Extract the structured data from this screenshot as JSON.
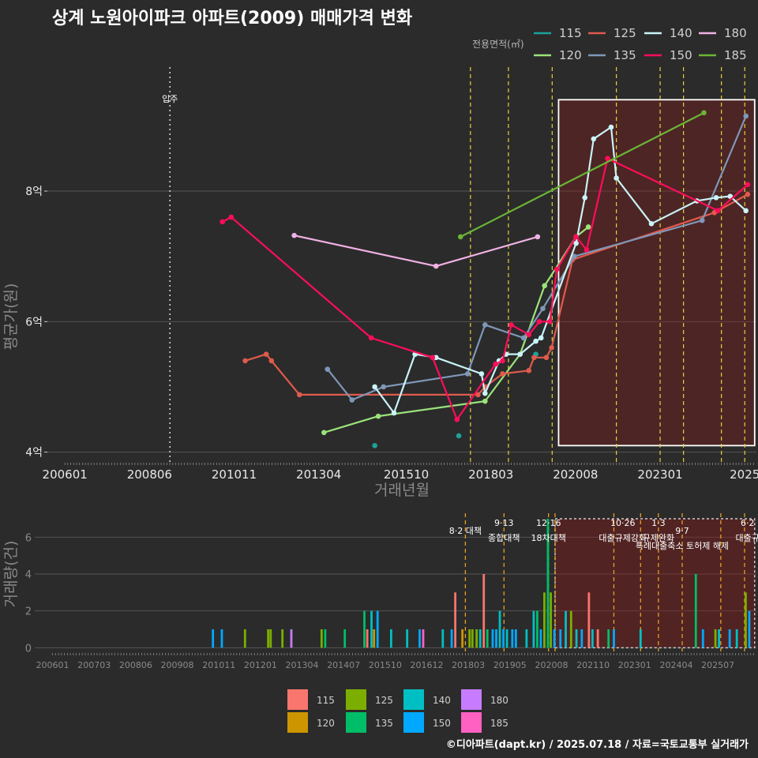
{
  "chart_data": [
    {
      "id": "price",
      "type": "line",
      "title": "상계 노원아이파크 아파트(2009) 매매가격 변화",
      "xlabel": "거래년월",
      "ylabel": "평균가(원)",
      "legend_title": "전용면적(㎡)",
      "y_tick_labels": [
        {
          "v": 4,
          "label": "4억"
        },
        {
          "v": 6,
          "label": "6억"
        },
        {
          "v": 8,
          "label": "8억"
        }
      ],
      "x_tick_labels": [
        {
          "t": 2006.0,
          "label": "200601"
        },
        {
          "t": 2008.417,
          "label": "200806"
        },
        {
          "t": 2010.833,
          "label": "201011"
        },
        {
          "t": 2013.25,
          "label": "201304"
        },
        {
          "t": 2015.75,
          "label": "201510"
        },
        {
          "t": 2018.167,
          "label": "201803"
        },
        {
          "t": 2020.583,
          "label": "202008"
        },
        {
          "t": 2023.0,
          "label": "202301"
        },
        {
          "t": 2025.417,
          "label": "2025"
        }
      ],
      "ylim": [
        3.85,
        9.9
      ],
      "xlim": [
        2005.5,
        2025.75
      ],
      "move_in": {
        "t": 2009.0,
        "label": "입주"
      },
      "policy_lines": [
        2017.583,
        2018.667,
        2019.917,
        2021.75,
        2023.0,
        2023.667,
        2024.75,
        2025.417
      ],
      "highlight_range": {
        "t0": 2020.1,
        "t1": 2025.7,
        "v0": 4.1,
        "v1": 9.4
      },
      "series": [
        {
          "name": "115",
          "color": "#1aa39a",
          "points": [
            [
              2014.85,
              4.1
            ],
            [
              2017.25,
              4.25
            ],
            [
              2019.45,
              5.5
            ]
          ],
          "connect": false
        },
        {
          "name": "120",
          "color": "#9be37a",
          "points": [
            [
              2013.4,
              4.3
            ],
            [
              2014.95,
              4.55
            ],
            [
              2018.0,
              4.78
            ],
            [
              2019.0,
              5.5
            ],
            [
              2019.7,
              6.55
            ],
            [
              2020.6,
              7.3
            ],
            [
              2020.95,
              7.45
            ]
          ],
          "connect": true
        },
        {
          "name": "125",
          "color": "#e05a4c",
          "points": [
            [
              2011.15,
              5.4
            ],
            [
              2011.75,
              5.5
            ],
            [
              2011.9,
              5.4
            ],
            [
              2012.7,
              4.88
            ],
            [
              2017.8,
              4.88
            ],
            [
              2018.0,
              5.0
            ],
            [
              2018.5,
              5.2
            ],
            [
              2019.25,
              5.25
            ],
            [
              2019.4,
              5.45
            ],
            [
              2019.75,
              5.45
            ],
            [
              2019.9,
              5.6
            ],
            [
              2020.5,
              6.95
            ],
            [
              2024.55,
              7.67
            ],
            [
              2025.5,
              7.95
            ]
          ],
          "connect": true
        },
        {
          "name": "135",
          "color": "#7f97b8",
          "points": [
            [
              2013.5,
              5.27
            ],
            [
              2014.2,
              4.8
            ],
            [
              2015.1,
              5.0
            ],
            [
              2017.5,
              5.2
            ],
            [
              2018.0,
              5.95
            ],
            [
              2019.1,
              5.75
            ],
            [
              2019.65,
              6.2
            ],
            [
              2020.55,
              7.0
            ],
            [
              2024.2,
              7.55
            ],
            [
              2025.45,
              9.15
            ]
          ],
          "connect": true
        },
        {
          "name": "140",
          "color": "#c9f4f8",
          "points": [
            [
              2014.85,
              5.0
            ],
            [
              2015.4,
              4.6
            ],
            [
              2016.0,
              5.5
            ],
            [
              2016.6,
              5.45
            ],
            [
              2017.9,
              5.2
            ],
            [
              2018.0,
              4.9
            ],
            [
              2018.4,
              5.4
            ],
            [
              2018.6,
              5.5
            ],
            [
              2019.0,
              5.5
            ],
            [
              2019.45,
              5.7
            ],
            [
              2019.6,
              5.75
            ],
            [
              2020.6,
              7.2
            ],
            [
              2020.85,
              7.9
            ],
            [
              2021.1,
              8.8
            ],
            [
              2021.6,
              8.98
            ],
            [
              2021.75,
              8.2
            ],
            [
              2022.75,
              7.5
            ],
            [
              2024.05,
              7.85
            ],
            [
              2024.6,
              7.9
            ],
            [
              2025.0,
              7.92
            ],
            [
              2025.45,
              7.7
            ]
          ],
          "connect": true
        },
        {
          "name": "150",
          "color": "#ff0d5a",
          "points": [
            [
              2010.5,
              7.53
            ],
            [
              2010.75,
              7.6
            ],
            [
              2014.75,
              5.75
            ],
            [
              2016.5,
              5.45
            ],
            [
              2017.2,
              4.5
            ],
            [
              2018.3,
              5.35
            ],
            [
              2018.5,
              5.4
            ],
            [
              2018.75,
              5.95
            ],
            [
              2019.25,
              5.8
            ],
            [
              2019.55,
              6.0
            ],
            [
              2019.85,
              6.0
            ],
            [
              2020.05,
              6.8
            ],
            [
              2020.6,
              7.3
            ],
            [
              2020.9,
              7.1
            ],
            [
              2021.5,
              8.5
            ],
            [
              2024.65,
              7.7
            ],
            [
              2025.5,
              8.1
            ]
          ],
          "connect": true
        },
        {
          "name": "180",
          "color": "#f0b1e4",
          "points": [
            [
              2012.55,
              7.32
            ],
            [
              2016.6,
              6.85
            ],
            [
              2019.5,
              7.3
            ]
          ],
          "connect": true
        },
        {
          "name": "185",
          "color": "#6ab536",
          "points": [
            [
              2017.3,
              7.3
            ],
            [
              2024.25,
              9.2
            ]
          ],
          "connect": true
        }
      ]
    },
    {
      "id": "volume",
      "type": "bar",
      "ylabel": "거래량(건)",
      "ylim": [
        -0.2,
        7.3
      ],
      "y_ticks": [
        0,
        2,
        4,
        6
      ],
      "x_tick_labels": [
        "200601",
        "200703",
        "200806",
        "200908",
        "201011",
        "201201",
        "201304",
        "201407",
        "201510",
        "201612",
        "201803",
        "201905",
        "202008",
        "202110",
        "202301",
        "202404",
        "202507"
      ],
      "x_start": 2006.0,
      "x_step": 1.1667,
      "xlim": [
        2005.5,
        2025.75
      ],
      "highlight_range": {
        "t0": 2020.1,
        "t1": 2025.7,
        "v1": 7.0
      },
      "policy_lines": [
        2017.583,
        2018.667,
        2019.917,
        2020.1,
        2021.75,
        2022.5,
        2023.0,
        2023.667,
        2024.75,
        2025.417
      ],
      "annotations": [
        {
          "t": 2017.583,
          "lines": [
            "8·2 대책"
          ],
          "row": 2
        },
        {
          "t": 2018.667,
          "lines": [
            "9·13",
            "종합대책"
          ],
          "row": 1
        },
        {
          "t": 2019.917,
          "lines": [
            "12·16",
            "18차대책"
          ],
          "row": 1
        },
        {
          "t": 2022.0,
          "lines": [
            "10·26",
            "대출규제강화"
          ],
          "row": 1
        },
        {
          "t": 2023.0,
          "lines": [
            "1·3",
            "규제완화"
          ],
          "row": 1
        },
        {
          "t": 2023.667,
          "lines": [
            "9·7",
            "특례대출축소 토허제 해제"
          ],
          "row": 2
        },
        {
          "t": 2025.5,
          "lines": [
            "6·2",
            "대출규"
          ],
          "row": 1
        }
      ],
      "legend_entries": [
        {
          "name": "115",
          "color": "#f8766d"
        },
        {
          "name": "125",
          "color": "#7cae00"
        },
        {
          "name": "140",
          "color": "#00bfc4"
        },
        {
          "name": "180",
          "color": "#c77cff"
        },
        {
          "name": "120",
          "color": "#cd9600"
        },
        {
          "name": "135",
          "color": "#00be67"
        },
        {
          "name": "150",
          "color": "#00a9ff"
        },
        {
          "name": "185",
          "color": "#ff61c3"
        }
      ],
      "bars": [
        {
          "t": 2010.5,
          "v": 1,
          "s": "150"
        },
        {
          "t": 2010.75,
          "v": 1,
          "s": "150"
        },
        {
          "t": 2011.4,
          "v": 1,
          "s": "125"
        },
        {
          "t": 2012.05,
          "v": 1,
          "s": "125"
        },
        {
          "t": 2012.12,
          "v": 1,
          "s": "125"
        },
        {
          "t": 2012.45,
          "v": 1,
          "s": "125"
        },
        {
          "t": 2012.7,
          "v": 1,
          "s": "180"
        },
        {
          "t": 2013.55,
          "v": 1,
          "s": "125"
        },
        {
          "t": 2013.65,
          "v": 1,
          "s": "135"
        },
        {
          "t": 2014.2,
          "v": 1,
          "s": "135"
        },
        {
          "t": 2014.75,
          "v": 2,
          "s": "135"
        },
        {
          "t": 2014.83,
          "v": 1,
          "s": "115"
        },
        {
          "t": 2014.95,
          "v": 2,
          "s": "140"
        },
        {
          "t": 2015.02,
          "v": 1,
          "s": "120"
        },
        {
          "t": 2015.12,
          "v": 2,
          "s": "150"
        },
        {
          "t": 2015.5,
          "v": 1,
          "s": "140"
        },
        {
          "t": 2015.95,
          "v": 1,
          "s": "140"
        },
        {
          "t": 2016.3,
          "v": 1,
          "s": "150"
        },
        {
          "t": 2016.4,
          "v": 1,
          "s": "185"
        },
        {
          "t": 2016.95,
          "v": 1,
          "s": "140"
        },
        {
          "t": 2017.2,
          "v": 1,
          "s": "150"
        },
        {
          "t": 2017.3,
          "v": 3,
          "s": "115"
        },
        {
          "t": 2017.5,
          "v": 1,
          "s": "120"
        },
        {
          "t": 2017.7,
          "v": 1,
          "s": "125"
        },
        {
          "t": 2017.78,
          "v": 1,
          "s": "125"
        },
        {
          "t": 2017.9,
          "v": 1,
          "s": "125"
        },
        {
          "t": 2018.0,
          "v": 1,
          "s": "140"
        },
        {
          "t": 2018.1,
          "v": 4,
          "s": "115"
        },
        {
          "t": 2018.2,
          "v": 1,
          "s": "135"
        },
        {
          "t": 2018.35,
          "v": 1,
          "s": "150"
        },
        {
          "t": 2018.45,
          "v": 1,
          "s": "150"
        },
        {
          "t": 2018.55,
          "v": 2,
          "s": "140"
        },
        {
          "t": 2018.65,
          "v": 1,
          "s": "150"
        },
        {
          "t": 2018.75,
          "v": 1,
          "s": "140"
        },
        {
          "t": 2018.9,
          "v": 1,
          "s": "150"
        },
        {
          "t": 2019.0,
          "v": 1,
          "s": "150"
        },
        {
          "t": 2019.3,
          "v": 1,
          "s": "140"
        },
        {
          "t": 2019.5,
          "v": 2,
          "s": "140"
        },
        {
          "t": 2019.6,
          "v": 2,
          "s": "135"
        },
        {
          "t": 2019.7,
          "v": 1,
          "s": "150"
        },
        {
          "t": 2019.8,
          "v": 3,
          "s": "125"
        },
        {
          "t": 2019.9,
          "v": 7,
          "s": "135"
        },
        {
          "t": 2019.98,
          "v": 3,
          "s": "125"
        },
        {
          "t": 2020.08,
          "v": 1,
          "s": "150"
        },
        {
          "t": 2020.25,
          "v": 1,
          "s": "150"
        },
        {
          "t": 2020.4,
          "v": 2,
          "s": "140"
        },
        {
          "t": 2020.55,
          "v": 2,
          "s": "125"
        },
        {
          "t": 2020.7,
          "v": 1,
          "s": "140"
        },
        {
          "t": 2020.85,
          "v": 1,
          "s": "150"
        },
        {
          "t": 2021.05,
          "v": 3,
          "s": "115"
        },
        {
          "t": 2021.15,
          "v": 1,
          "s": "140"
        },
        {
          "t": 2021.3,
          "v": 1,
          "s": "115"
        },
        {
          "t": 2021.6,
          "v": 1,
          "s": "135"
        },
        {
          "t": 2021.75,
          "v": 1,
          "s": "150"
        },
        {
          "t": 2022.5,
          "v": 1,
          "s": "140"
        },
        {
          "t": 2024.05,
          "v": 4,
          "s": "135"
        },
        {
          "t": 2024.25,
          "v": 1,
          "s": "150"
        },
        {
          "t": 2024.6,
          "v": 1,
          "s": "125"
        },
        {
          "t": 2024.7,
          "v": 1,
          "s": "140"
        },
        {
          "t": 2025.0,
          "v": 1,
          "s": "150"
        },
        {
          "t": 2025.2,
          "v": 1,
          "s": "140"
        },
        {
          "t": 2025.45,
          "v": 3,
          "s": "125"
        },
        {
          "t": 2025.55,
          "v": 2,
          "s": "150"
        }
      ]
    }
  ],
  "caption": "©디아파트(dapt.kr) / 2025.07.18 / 자료=국토교통부 실거래가"
}
